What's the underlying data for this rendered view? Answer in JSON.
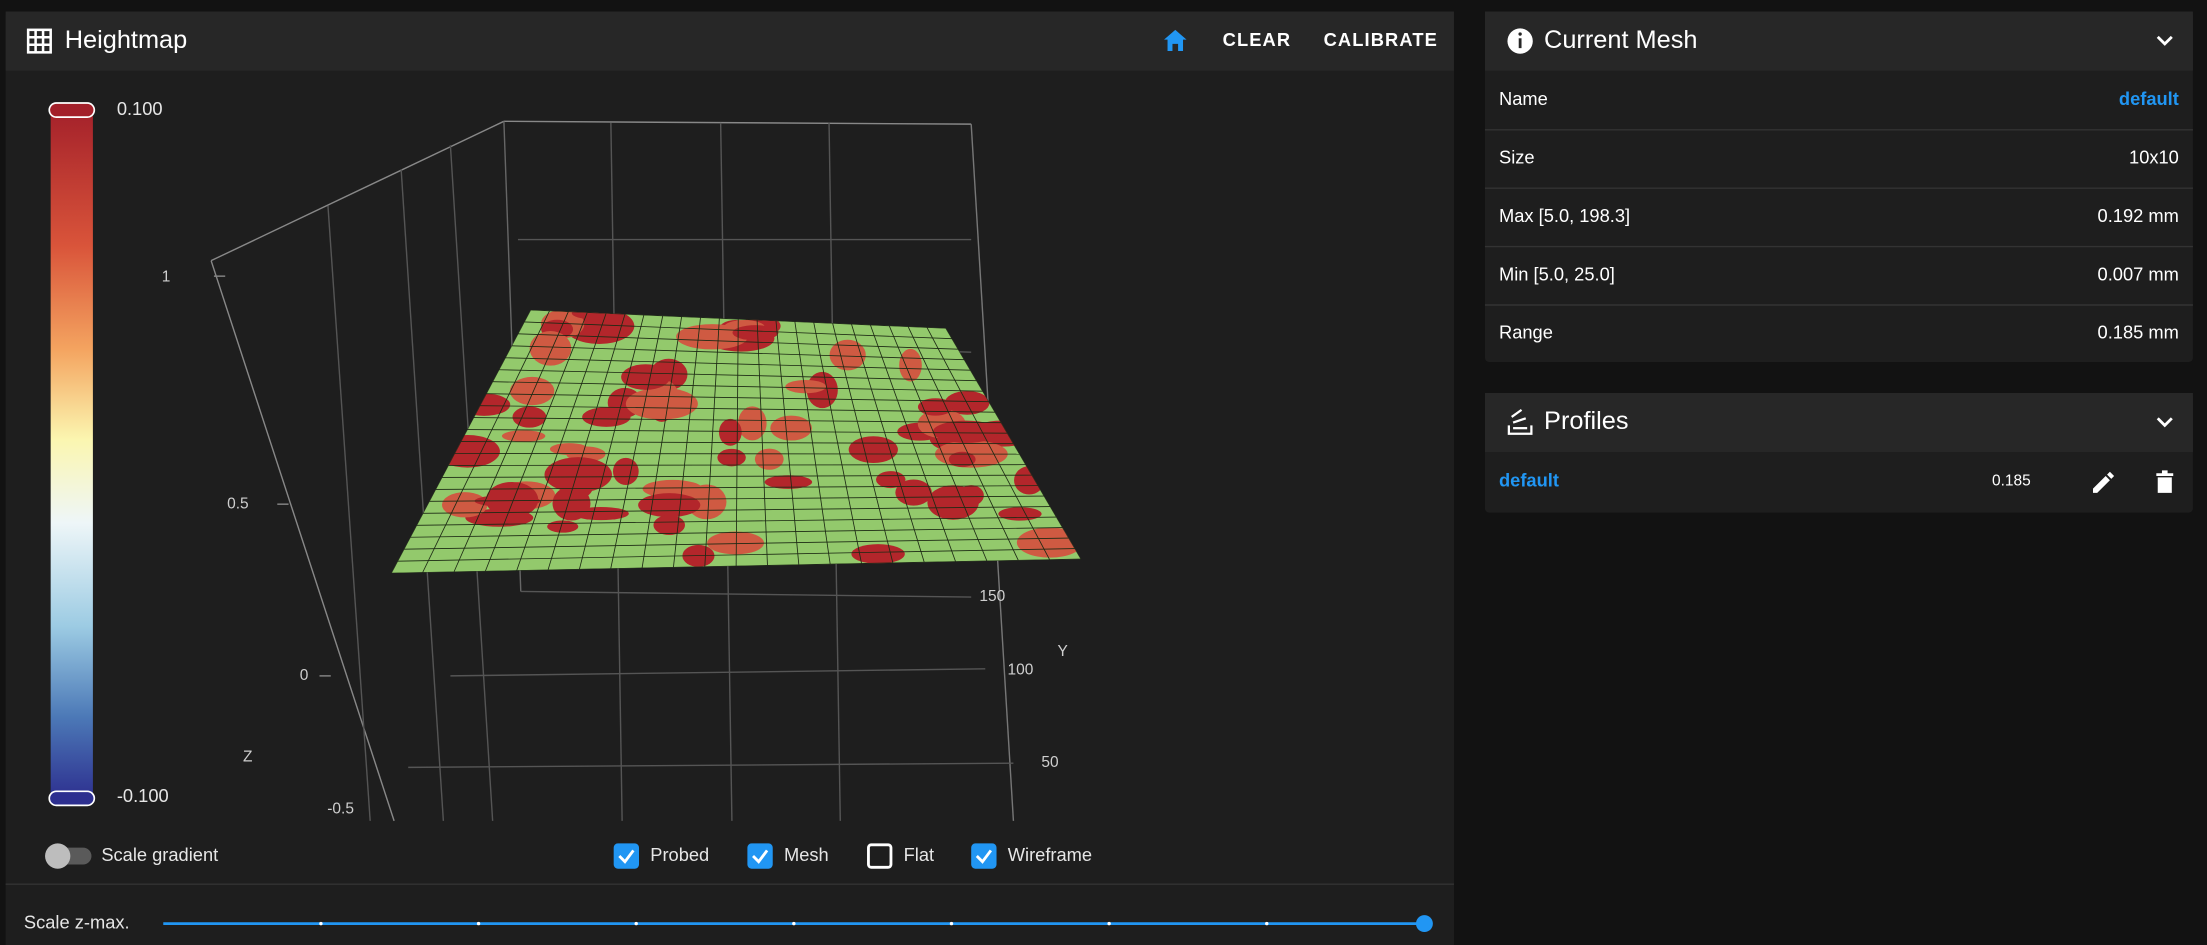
{
  "heightmap": {
    "title": "Heightmap",
    "actions": [
      "CLEAR",
      "CALIBRATE"
    ],
    "colorbar": {
      "max": "0.100",
      "min": "-0.100"
    },
    "z_axis": {
      "label": "Z",
      "ticks": [
        "1",
        "0.5",
        "0",
        "-0.5"
      ]
    },
    "y_axis": {
      "label": "Y",
      "ticks": [
        "150",
        "100",
        "50"
      ]
    },
    "scale_gradient": "Scale gradient",
    "options": [
      {
        "label": "Probed",
        "checked": true
      },
      {
        "label": "Mesh",
        "checked": true
      },
      {
        "label": "Flat",
        "checked": false
      },
      {
        "label": "Wireframe",
        "checked": true
      }
    ],
    "scale_z_max": "Scale z-max."
  },
  "current_mesh": {
    "title": "Current Mesh",
    "rows": [
      [
        "Name",
        "default"
      ],
      [
        "Size",
        "10x10"
      ],
      [
        "Max [5.0, 198.3]",
        "0.192 mm"
      ],
      [
        "Min [5.0, 25.0]",
        "0.007 mm"
      ],
      [
        "Range",
        "0.185 mm"
      ]
    ]
  },
  "profiles": {
    "title": "Profiles",
    "rows": [
      {
        "name": "default",
        "range": "0.185"
      }
    ]
  }
}
